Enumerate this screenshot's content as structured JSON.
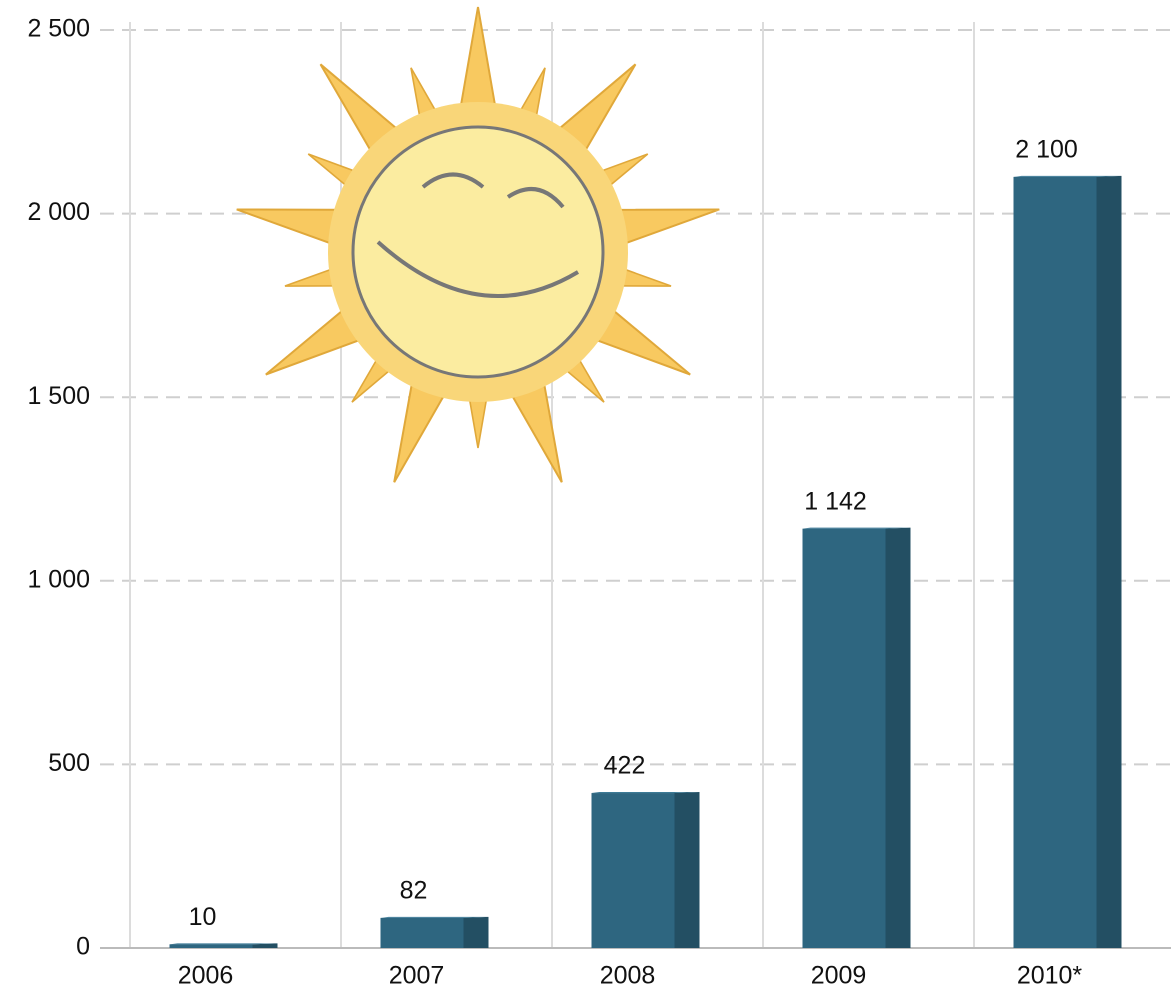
{
  "chart_data": {
    "type": "bar",
    "categories": [
      "2006",
      "2007",
      "2008",
      "2009",
      "2010*"
    ],
    "values": [
      10,
      82,
      422,
      1142,
      2100
    ],
    "value_labels": [
      "10",
      "82",
      "422",
      "1 142",
      "2 100"
    ],
    "color": "#2e6680",
    "ylim": [
      0,
      2500
    ],
    "yticks": [
      0,
      500,
      {
        "value": 1000,
        "label": "1 000"
      },
      {
        "value": 1500,
        "label": "1 500"
      },
      {
        "value": 2000,
        "label": "2 000"
      },
      {
        "value": 2500,
        "label": "2 500"
      }
    ],
    "grid": true
  }
}
